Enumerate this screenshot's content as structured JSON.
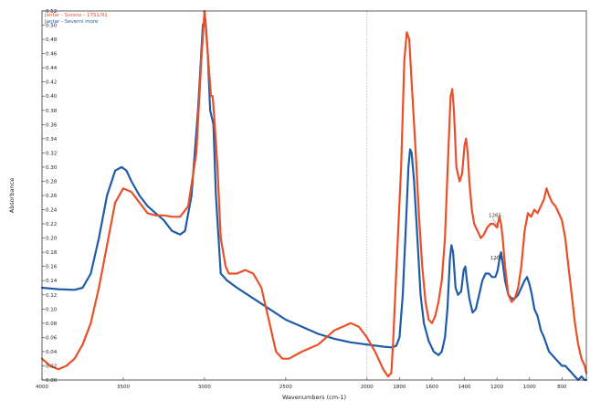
{
  "chart_data": {
    "type": "line",
    "xlabel": "Wavenumbers (cm-1)",
    "ylabel": "Absorbance",
    "xlim": [
      4000,
      650
    ],
    "ylim": [
      0,
      0.52
    ],
    "x_reversed": true,
    "x_ticks": [
      4000,
      3500,
      3000,
      2500,
      2000,
      1800,
      1600,
      1400,
      1200,
      1000,
      800
    ],
    "y_ticks": [
      0.0,
      0.02,
      0.04,
      0.06,
      0.08,
      0.1,
      0.12,
      0.14,
      0.16,
      0.18,
      0.2,
      0.22,
      0.24,
      0.26,
      0.28,
      0.3,
      0.32,
      0.34,
      0.36,
      0.38,
      0.4,
      0.42,
      0.44,
      0.46,
      0.48,
      0.5,
      0.52
    ],
    "legend_position": "top-left",
    "series": [
      {
        "name": "Jantar - Svrsno - 1751/91",
        "color": "#e8502a",
        "points": [
          [
            4000,
            0.03
          ],
          [
            3950,
            0.02
          ],
          [
            3900,
            0.015
          ],
          [
            3850,
            0.02
          ],
          [
            3800,
            0.03
          ],
          [
            3750,
            0.05
          ],
          [
            3700,
            0.08
          ],
          [
            3650,
            0.13
          ],
          [
            3600,
            0.19
          ],
          [
            3550,
            0.25
          ],
          [
            3500,
            0.27
          ],
          [
            3450,
            0.265
          ],
          [
            3400,
            0.25
          ],
          [
            3350,
            0.235
          ],
          [
            3300,
            0.232
          ],
          [
            3250,
            0.232
          ],
          [
            3200,
            0.23
          ],
          [
            3150,
            0.23
          ],
          [
            3100,
            0.245
          ],
          [
            3050,
            0.32
          ],
          [
            3020,
            0.45
          ],
          [
            3000,
            0.52
          ],
          [
            2980,
            0.46
          ],
          [
            2960,
            0.4
          ],
          [
            2950,
            0.4
          ],
          [
            2940,
            0.37
          ],
          [
            2920,
            0.3
          ],
          [
            2900,
            0.2
          ],
          [
            2870,
            0.16
          ],
          [
            2850,
            0.15
          ],
          [
            2800,
            0.15
          ],
          [
            2750,
            0.155
          ],
          [
            2700,
            0.15
          ],
          [
            2650,
            0.13
          ],
          [
            2600,
            0.08
          ],
          [
            2560,
            0.04
          ],
          [
            2520,
            0.03
          ],
          [
            2480,
            0.03
          ],
          [
            2400,
            0.04
          ],
          [
            2300,
            0.05
          ],
          [
            2200,
            0.07
          ],
          [
            2100,
            0.08
          ],
          [
            2050,
            0.075
          ],
          [
            2000,
            0.06
          ],
          [
            1950,
            0.04
          ],
          [
            1900,
            0.015
          ],
          [
            1870,
            0.005
          ],
          [
            1850,
            0.01
          ],
          [
            1840,
            0.05
          ],
          [
            1820,
            0.15
          ],
          [
            1790,
            0.3
          ],
          [
            1770,
            0.45
          ],
          [
            1755,
            0.49
          ],
          [
            1740,
            0.48
          ],
          [
            1725,
            0.42
          ],
          [
            1700,
            0.32
          ],
          [
            1680,
            0.23
          ],
          [
            1660,
            0.16
          ],
          [
            1640,
            0.11
          ],
          [
            1620,
            0.085
          ],
          [
            1600,
            0.08
          ],
          [
            1580,
            0.09
          ],
          [
            1560,
            0.11
          ],
          [
            1540,
            0.14
          ],
          [
            1520,
            0.2
          ],
          [
            1500,
            0.32
          ],
          [
            1485,
            0.4
          ],
          [
            1475,
            0.41
          ],
          [
            1465,
            0.38
          ],
          [
            1450,
            0.3
          ],
          [
            1430,
            0.28
          ],
          [
            1415,
            0.29
          ],
          [
            1400,
            0.33
          ],
          [
            1390,
            0.34
          ],
          [
            1380,
            0.32
          ],
          [
            1370,
            0.28
          ],
          [
            1355,
            0.24
          ],
          [
            1340,
            0.22
          ],
          [
            1320,
            0.21
          ],
          [
            1300,
            0.2
          ],
          [
            1280,
            0.205
          ],
          [
            1260,
            0.215
          ],
          [
            1240,
            0.22
          ],
          [
            1220,
            0.22
          ],
          [
            1200,
            0.215
          ],
          [
            1185,
            0.23
          ],
          [
            1175,
            0.22
          ],
          [
            1165,
            0.2
          ],
          [
            1150,
            0.16
          ],
          [
            1130,
            0.12
          ],
          [
            1110,
            0.11
          ],
          [
            1090,
            0.115
          ],
          [
            1070,
            0.13
          ],
          [
            1050,
            0.16
          ],
          [
            1030,
            0.21
          ],
          [
            1010,
            0.235
          ],
          [
            990,
            0.23
          ],
          [
            970,
            0.24
          ],
          [
            950,
            0.235
          ],
          [
            930,
            0.245
          ],
          [
            910,
            0.255
          ],
          [
            895,
            0.27
          ],
          [
            880,
            0.26
          ],
          [
            860,
            0.25
          ],
          [
            840,
            0.245
          ],
          [
            820,
            0.235
          ],
          [
            800,
            0.225
          ],
          [
            780,
            0.2
          ],
          [
            760,
            0.16
          ],
          [
            740,
            0.12
          ],
          [
            720,
            0.08
          ],
          [
            700,
            0.05
          ],
          [
            680,
            0.03
          ],
          [
            660,
            0.02
          ],
          [
            650,
            0.01
          ]
        ]
      },
      {
        "name": "Jantar - Severní more",
        "color": "#1f5ca8",
        "points": [
          [
            4000,
            0.13
          ],
          [
            3900,
            0.128
          ],
          [
            3800,
            0.127
          ],
          [
            3750,
            0.13
          ],
          [
            3700,
            0.15
          ],
          [
            3650,
            0.2
          ],
          [
            3600,
            0.26
          ],
          [
            3550,
            0.295
          ],
          [
            3510,
            0.3
          ],
          [
            3480,
            0.295
          ],
          [
            3450,
            0.28
          ],
          [
            3400,
            0.26
          ],
          [
            3350,
            0.245
          ],
          [
            3300,
            0.235
          ],
          [
            3250,
            0.225
          ],
          [
            3200,
            0.21
          ],
          [
            3150,
            0.205
          ],
          [
            3120,
            0.21
          ],
          [
            3080,
            0.26
          ],
          [
            3040,
            0.38
          ],
          [
            3010,
            0.5
          ],
          [
            2995,
            0.51
          ],
          [
            2980,
            0.46
          ],
          [
            2965,
            0.38
          ],
          [
            2955,
            0.37
          ],
          [
            2945,
            0.36
          ],
          [
            2930,
            0.26
          ],
          [
            2900,
            0.15
          ],
          [
            2860,
            0.14
          ],
          [
            2800,
            0.13
          ],
          [
            2700,
            0.115
          ],
          [
            2600,
            0.1
          ],
          [
            2500,
            0.085
          ],
          [
            2400,
            0.075
          ],
          [
            2300,
            0.065
          ],
          [
            2200,
            0.058
          ],
          [
            2100,
            0.053
          ],
          [
            2000,
            0.05
          ],
          [
            1900,
            0.047
          ],
          [
            1850,
            0.046
          ],
          [
            1820,
            0.048
          ],
          [
            1800,
            0.06
          ],
          [
            1780,
            0.12
          ],
          [
            1760,
            0.22
          ],
          [
            1745,
            0.3
          ],
          [
            1735,
            0.325
          ],
          [
            1725,
            0.32
          ],
          [
            1710,
            0.28
          ],
          [
            1690,
            0.2
          ],
          [
            1670,
            0.12
          ],
          [
            1650,
            0.08
          ],
          [
            1620,
            0.055
          ],
          [
            1590,
            0.04
          ],
          [
            1560,
            0.035
          ],
          [
            1540,
            0.04
          ],
          [
            1520,
            0.06
          ],
          [
            1505,
            0.1
          ],
          [
            1490,
            0.17
          ],
          [
            1480,
            0.19
          ],
          [
            1470,
            0.18
          ],
          [
            1455,
            0.13
          ],
          [
            1440,
            0.12
          ],
          [
            1420,
            0.125
          ],
          [
            1405,
            0.155
          ],
          [
            1395,
            0.16
          ],
          [
            1385,
            0.14
          ],
          [
            1370,
            0.115
          ],
          [
            1350,
            0.095
          ],
          [
            1330,
            0.1
          ],
          [
            1310,
            0.12
          ],
          [
            1290,
            0.14
          ],
          [
            1270,
            0.15
          ],
          [
            1250,
            0.15
          ],
          [
            1230,
            0.145
          ],
          [
            1210,
            0.145
          ],
          [
            1195,
            0.155
          ],
          [
            1185,
            0.17
          ],
          [
            1175,
            0.18
          ],
          [
            1165,
            0.165
          ],
          [
            1150,
            0.14
          ],
          [
            1130,
            0.12
          ],
          [
            1110,
            0.115
          ],
          [
            1090,
            0.115
          ],
          [
            1070,
            0.12
          ],
          [
            1050,
            0.13
          ],
          [
            1030,
            0.14
          ],
          [
            1015,
            0.145
          ],
          [
            1000,
            0.135
          ],
          [
            985,
            0.12
          ],
          [
            970,
            0.1
          ],
          [
            950,
            0.09
          ],
          [
            930,
            0.07
          ],
          [
            910,
            0.06
          ],
          [
            895,
            0.05
          ],
          [
            880,
            0.04
          ],
          [
            860,
            0.035
          ],
          [
            840,
            0.03
          ],
          [
            820,
            0.025
          ],
          [
            800,
            0.02
          ],
          [
            780,
            0.02
          ],
          [
            760,
            0.015
          ],
          [
            740,
            0.01
          ],
          [
            720,
            0.005
          ],
          [
            700,
            0.0
          ],
          [
            680,
            0.005
          ],
          [
            660,
            0.0
          ],
          [
            650,
            0.0
          ]
        ]
      }
    ],
    "annotations": [
      {
        "label": "1265",
        "x": 1240,
        "y": 0.23,
        "target_x": 1185,
        "target_y": 0.215
      },
      {
        "label": "1209",
        "x": 1230,
        "y": 0.17,
        "target_x": 1175,
        "target_y": 0.18
      }
    ],
    "reference_line_x": 2000
  }
}
